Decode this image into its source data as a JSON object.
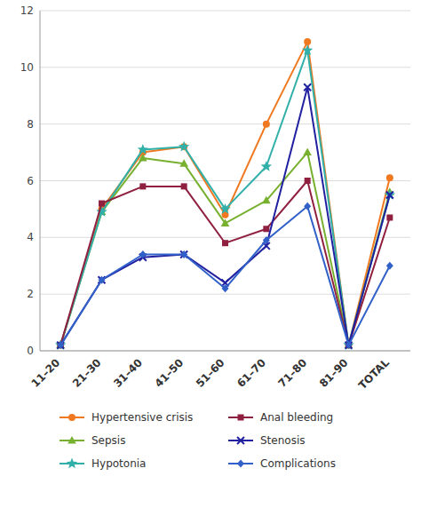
{
  "chart_data": {
    "type": "line",
    "categories": [
      "11–20",
      "21–30",
      "31–40",
      "41–50",
      "51–60",
      "61–70",
      "71–80",
      "81–90",
      "TOTAL"
    ],
    "series": [
      {
        "name": "Hypertensive crisis",
        "color": "#f07820",
        "marker": "circle",
        "values": [
          0.2,
          5.0,
          7.0,
          7.2,
          4.8,
          8.0,
          10.9,
          0.2,
          6.1
        ]
      },
      {
        "name": "Sepsis",
        "color": "#78b030",
        "marker": "triangle",
        "values": [
          0.2,
          4.9,
          6.8,
          6.6,
          4.5,
          5.3,
          7.0,
          0.2,
          5.6
        ]
      },
      {
        "name": "Hypotonia",
        "color": "#30b0a8",
        "marker": "star",
        "values": [
          0.2,
          4.9,
          7.1,
          7.2,
          5.0,
          6.5,
          10.6,
          0.2,
          5.5
        ]
      },
      {
        "name": "Anal bleeding",
        "color": "#902040",
        "marker": "square",
        "values": [
          0.2,
          5.2,
          5.8,
          5.8,
          3.8,
          4.3,
          6.0,
          0.2,
          4.7
        ]
      },
      {
        "name": "Stenosis",
        "color": "#2020a0",
        "marker": "x",
        "values": [
          0.2,
          2.5,
          3.3,
          3.4,
          2.4,
          3.7,
          9.3,
          0.2,
          5.5
        ]
      },
      {
        "name": "Complications",
        "color": "#3060c8",
        "marker": "diamond",
        "values": [
          0.2,
          2.5,
          3.4,
          3.4,
          2.2,
          3.9,
          5.1,
          0.2,
          3.0
        ]
      }
    ],
    "ylim": [
      0,
      12
    ],
    "yticks": [
      0,
      2,
      4,
      6,
      8,
      10,
      12
    ],
    "grid": true,
    "legend": "bottom"
  }
}
